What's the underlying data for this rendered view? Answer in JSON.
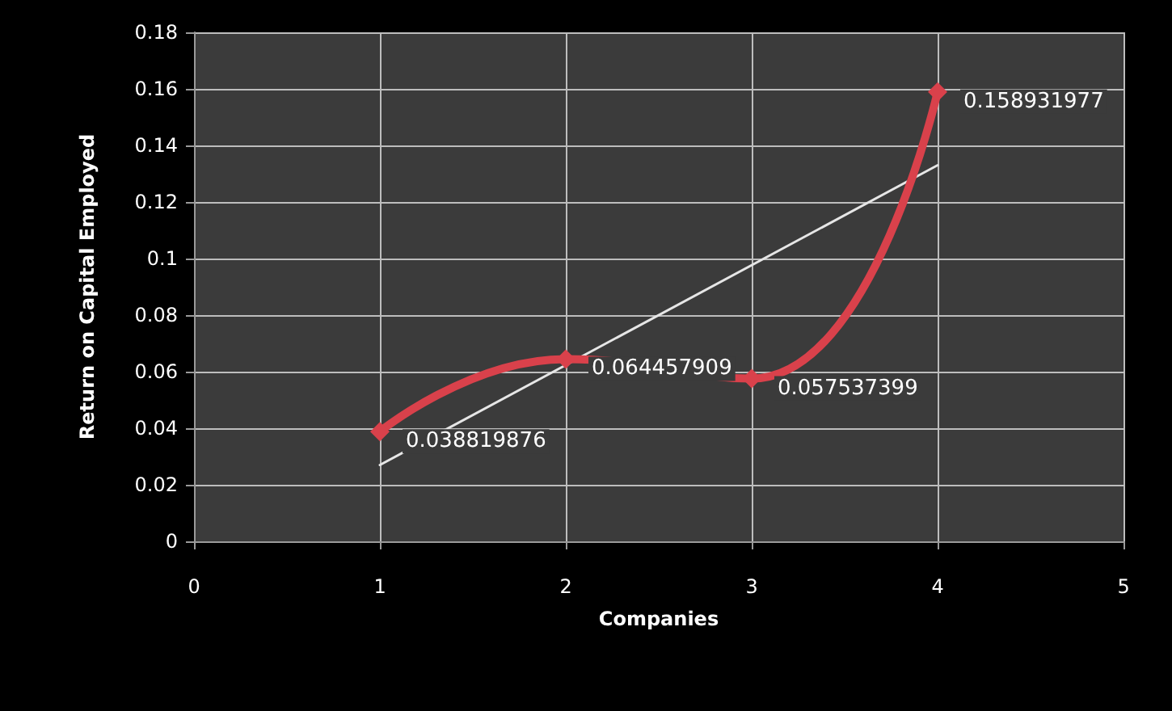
{
  "chart_data": {
    "type": "line",
    "xlabel": "Companies",
    "ylabel": "Return on Capital Employed",
    "xlim": [
      0,
      5
    ],
    "xticks": [
      0,
      1,
      2,
      3,
      4,
      5
    ],
    "ylim": [
      0,
      0.18
    ],
    "yticks": [
      0,
      0.02,
      0.04,
      0.06,
      0.08,
      0.1,
      0.12,
      0.14,
      0.16,
      0.18
    ],
    "grid": true,
    "marker": "diamond",
    "line_style": "solid",
    "series": [
      {
        "x": [
          1,
          2,
          3,
          4
        ],
        "values": [
          0.038819876,
          0.064457909,
          0.057537399,
          0.158931977
        ],
        "color": "#d9414b",
        "value_labels": [
          "0.038819876",
          "0.064457909",
          "0.057537399",
          "0.158931977"
        ]
      },
      {
        "x": [
          1,
          4
        ],
        "values": [
          0.027,
          0.133
        ],
        "color": "#e6e6e6",
        "marker": "none"
      }
    ]
  }
}
